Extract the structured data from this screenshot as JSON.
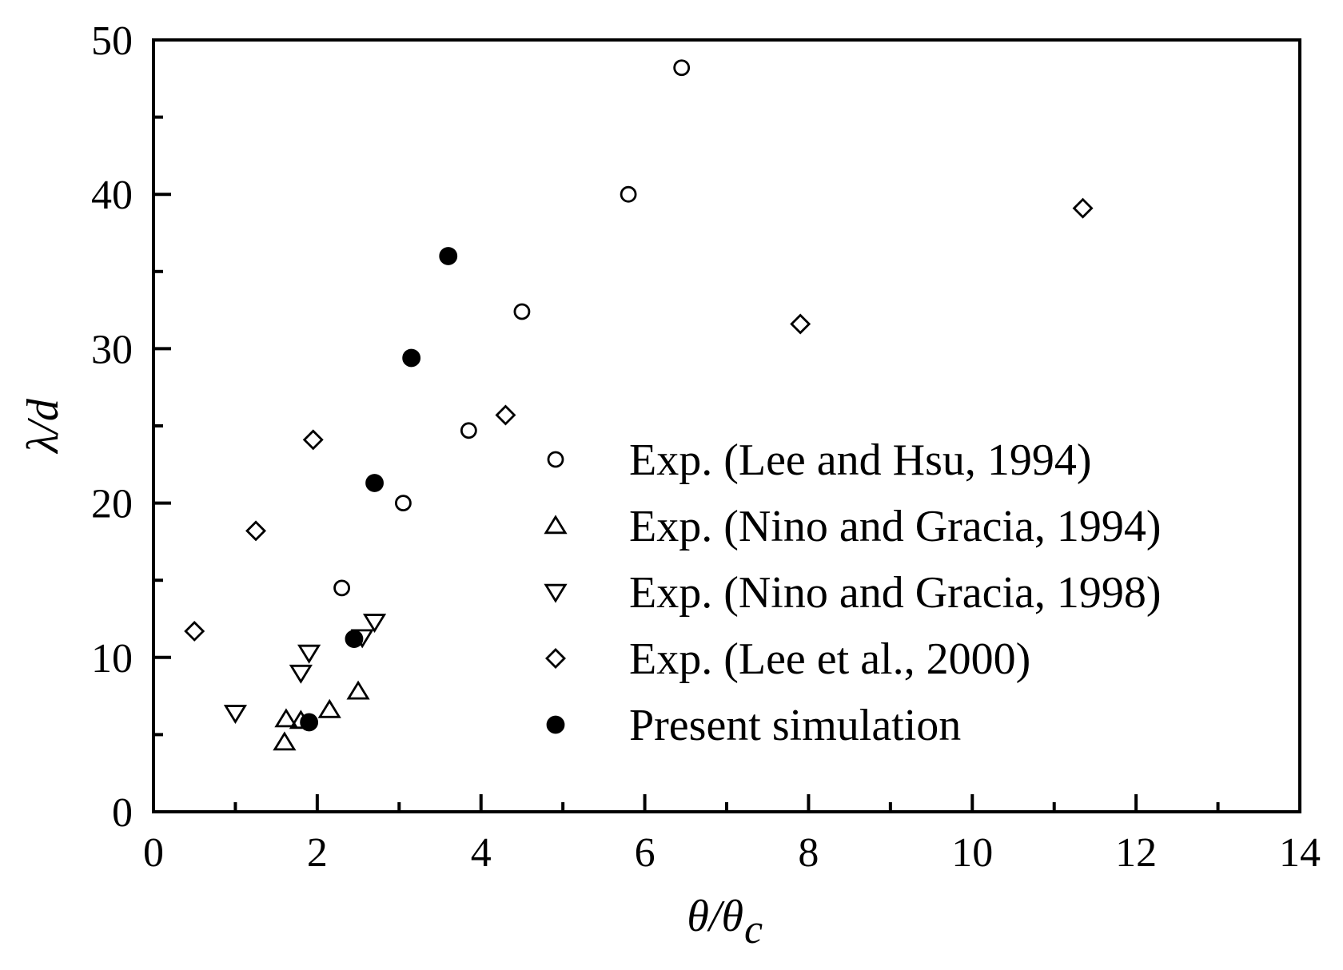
{
  "chart_data": {
    "type": "scatter",
    "xlabel": "θ/θc",
    "xlabel_main": "θ/θ",
    "xlabel_sub": "c",
    "ylabel": "λ/d",
    "xlim": [
      0,
      14
    ],
    "ylim": [
      0,
      50
    ],
    "xticks": [
      "0",
      "2",
      "4",
      "6",
      "8",
      "10",
      "12",
      "14"
    ],
    "yticks": [
      "0",
      "10",
      "20",
      "30",
      "40",
      "50"
    ],
    "grid": false,
    "legend_position": "bottom-right",
    "series": [
      {
        "name": "Exp. (Lee and Hsu, 1994)",
        "marker": "circle-open",
        "points": [
          [
            2.3,
            14.5
          ],
          [
            3.05,
            20.0
          ],
          [
            3.85,
            24.7
          ],
          [
            4.5,
            32.4
          ],
          [
            5.8,
            40.0
          ],
          [
            6.45,
            48.2
          ]
        ]
      },
      {
        "name": "Exp. (Nino and Gracia, 1994)",
        "marker": "triangle-up-open",
        "points": [
          [
            1.6,
            4.5
          ],
          [
            1.62,
            6.0
          ],
          [
            1.8,
            5.9
          ],
          [
            2.15,
            6.6
          ],
          [
            2.5,
            7.8
          ]
        ]
      },
      {
        "name": "Exp. (Nino and Gracia, 1998)",
        "marker": "triangle-down-open",
        "points": [
          [
            1.0,
            6.4
          ],
          [
            1.8,
            9.0
          ],
          [
            1.9,
            10.3
          ],
          [
            2.55,
            11.3
          ],
          [
            2.7,
            12.3
          ]
        ]
      },
      {
        "name": "Exp. (Lee et al., 2000)",
        "marker": "diamond-open",
        "points": [
          [
            0.5,
            11.7
          ],
          [
            1.25,
            18.2
          ],
          [
            1.95,
            24.1
          ],
          [
            4.3,
            25.7
          ],
          [
            7.9,
            31.6
          ],
          [
            11.35,
            39.1
          ]
        ]
      },
      {
        "name": "Present simulation",
        "marker": "circle-filled",
        "points": [
          [
            1.9,
            5.8
          ],
          [
            2.45,
            11.2
          ],
          [
            2.7,
            21.3
          ],
          [
            3.15,
            29.4
          ],
          [
            3.6,
            36.0
          ]
        ]
      }
    ]
  }
}
